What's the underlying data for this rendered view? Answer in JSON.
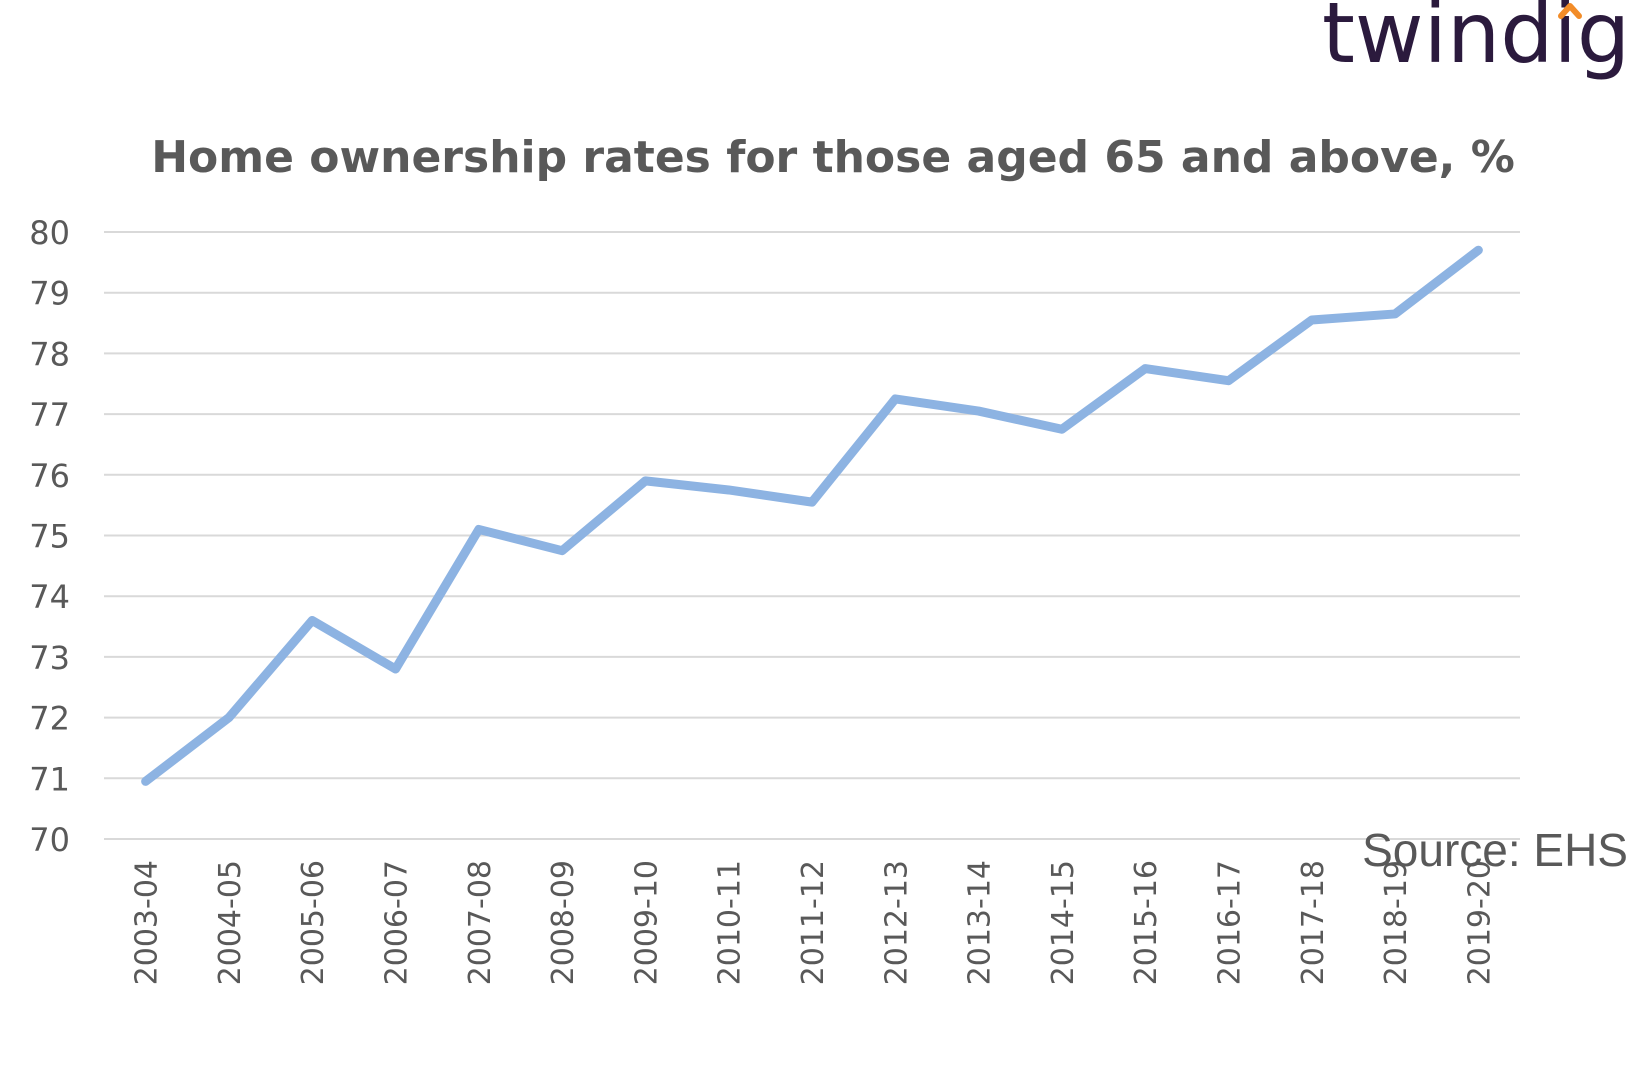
{
  "logo": {
    "text": "twindig",
    "text_color": "#2b1a3d",
    "accent_color": "#f28c28"
  },
  "source": "Source: EHS",
  "chart_data": {
    "type": "line",
    "title": "Home ownership rates for those aged 65 and above, %",
    "xlabel": "",
    "ylabel": "",
    "ylim": [
      70,
      80
    ],
    "yticks": [
      70,
      71,
      72,
      73,
      74,
      75,
      76,
      77,
      78,
      79,
      80
    ],
    "grid": true,
    "legend": "none",
    "line_color": "#8db3e2",
    "categories": [
      "2003-04",
      "2004-05",
      "2005-06",
      "2006-07",
      "2007-08",
      "2008-09",
      "2009-10",
      "2010-11",
      "2011-12",
      "2012-13",
      "2013-14",
      "2014-15",
      "2015-16",
      "2016-17",
      "2017-18",
      "2018-19",
      "2019-20"
    ],
    "values": [
      70.95,
      72.0,
      73.6,
      72.8,
      75.1,
      74.75,
      75.9,
      75.75,
      75.55,
      77.25,
      77.05,
      76.75,
      77.75,
      77.55,
      78.55,
      78.65,
      79.7
    ]
  }
}
